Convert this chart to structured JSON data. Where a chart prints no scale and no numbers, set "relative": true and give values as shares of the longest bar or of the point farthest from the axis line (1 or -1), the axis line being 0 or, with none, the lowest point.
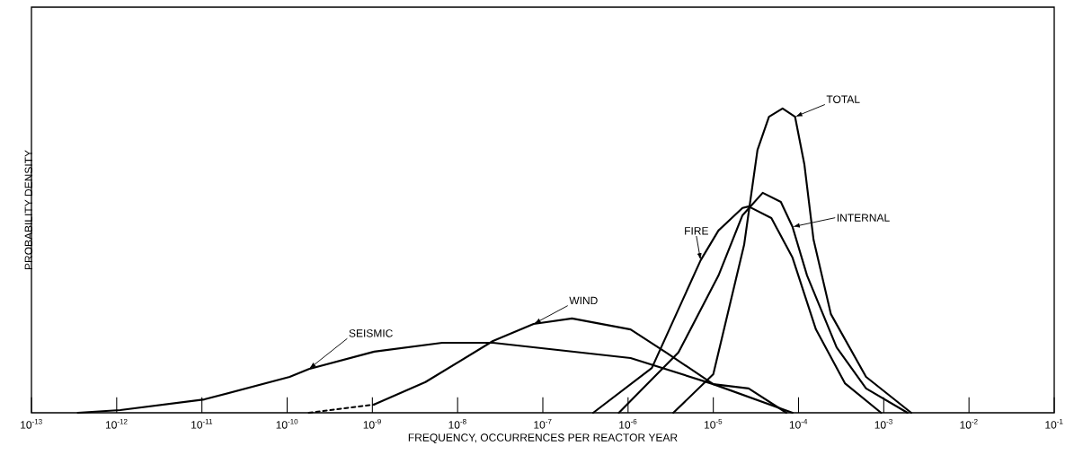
{
  "chart_data": {
    "type": "line",
    "relative": true,
    "log": "x",
    "marker": "none",
    "xlabel": "FREQUENCY, OCCURRENCES PER REACTOR YEAR",
    "ylabel": "PROBABILITY DENSITY",
    "xlim": [
      1e-13,
      0.1
    ],
    "xticks": [
      {
        "value": 1e-13,
        "label": "10$^{-13}$"
      },
      {
        "value": 1e-12,
        "label": "10$^{-12}$"
      },
      {
        "value": 1e-11,
        "label": "10$^{-11}$"
      },
      {
        "value": 1e-10,
        "label": "10$^{-10}$"
      },
      {
        "value": 1e-09,
        "label": "10$^{-9}$"
      },
      {
        "value": 1e-08,
        "label": "10$^{-8}$"
      },
      {
        "value": 1e-07,
        "label": "10$^{-7}$"
      },
      {
        "value": 1e-06,
        "label": "10$^{-6}$"
      },
      {
        "value": 1e-05,
        "label": "10$^{-5}$"
      },
      {
        "value": 0.0001,
        "label": "10$^{-4}$"
      },
      {
        "value": 0.001,
        "label": "10$^{-3}$"
      },
      {
        "value": 0.01,
        "label": "10$^{-2}$"
      },
      {
        "value": 0.1,
        "label": "10$^{-1}$"
      }
    ],
    "series": [
      {
        "name": "SEISMIC",
        "color": "#000000",
        "line_style": "solid",
        "x": [
          3.5e-13,
          1.1e-12,
          1.07e-11,
          1.07e-10,
          1.8e-10,
          1.05e-09,
          6.6e-09,
          2.6e-08,
          1.07e-06,
          1e-05,
          8.5e-05
        ],
        "values": [
          0,
          0.009,
          0.044,
          0.118,
          0.144,
          0.201,
          0.23,
          0.23,
          0.18,
          0.094,
          0
        ]
      },
      {
        "color": "#000000",
        "line_style": "dashed",
        "x": [
          1.8e-10,
          1.05e-09
        ],
        "values": [
          0,
          0.027
        ]
      },
      {
        "name": "WIND",
        "color": "#000000",
        "line_style": "solid",
        "x": [
          1.05e-09,
          4.2e-09,
          2.6e-08,
          7.8e-08,
          2.2e-07,
          1.07e-06,
          2.8e-06,
          1e-05,
          2.6e-05,
          7.2e-05
        ],
        "values": [
          0.027,
          0.101,
          0.236,
          0.292,
          0.31,
          0.274,
          0.198,
          0.094,
          0.08,
          0
        ]
      },
      {
        "name": "FIRE",
        "color": "#000000",
        "line_style": "solid",
        "x": [
          3.9e-07,
          1.9e-06,
          7.1e-06,
          1.15e-05,
          2.2e-05,
          2.6e-05,
          4.8e-05,
          8.5e-05,
          0.00016,
          0.00035,
          0.00093
        ],
        "values": [
          0,
          0.147,
          0.501,
          0.599,
          0.673,
          0.678,
          0.64,
          0.51,
          0.274,
          0.097,
          0
        ]
      },
      {
        "name": "INTERNAL",
        "color": "#000000",
        "line_style": "solid",
        "x": [
          7.8e-07,
          3.9e-06,
          1.15e-05,
          2.2e-05,
          3.8e-05,
          6.2e-05,
          8.5e-05,
          0.000126,
          0.00028,
          0.00062,
          0.0019
        ],
        "values": [
          0,
          0.198,
          0.451,
          0.649,
          0.723,
          0.693,
          0.611,
          0.451,
          0.215,
          0.08,
          0
        ]
      },
      {
        "name": "TOTAL",
        "color": "#000000",
        "line_style": "solid",
        "x": [
          3.4e-06,
          1e-05,
          2.3e-05,
          3.3e-05,
          4.5e-05,
          6.5e-05,
          9.1e-05,
          0.000117,
          0.00015,
          0.00024,
          0.00062,
          0.0021
        ],
        "values": [
          0,
          0.127,
          0.552,
          0.864,
          0.973,
          1.0,
          0.973,
          0.817,
          0.569,
          0.324,
          0.118,
          0
        ]
      }
    ]
  }
}
